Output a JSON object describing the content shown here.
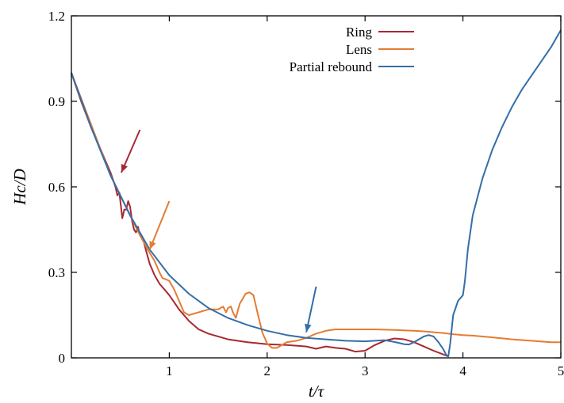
{
  "chart_data": {
    "type": "line",
    "xlabel": "t/τ",
    "ylabel": "Hc/D",
    "xlim": [
      0,
      5
    ],
    "ylim": [
      0,
      1.2
    ],
    "x_ticks": [
      1,
      2,
      3,
      4,
      5
    ],
    "x_tick_labels": [
      "1",
      "2",
      "3",
      "4",
      "5"
    ],
    "y_ticks": [
      0,
      0.3,
      0.6,
      0.9,
      1.2
    ],
    "y_tick_labels": [
      "0",
      "0.3",
      "0.6",
      "0.9",
      "1.2"
    ],
    "grid": false,
    "legend_position": "top-right",
    "series": [
      {
        "name": "Ring",
        "color": "#a82833",
        "points": [
          [
            0,
            1.0
          ],
          [
            0.1,
            0.9
          ],
          [
            0.2,
            0.81
          ],
          [
            0.3,
            0.73
          ],
          [
            0.4,
            0.65
          ],
          [
            0.45,
            0.6
          ],
          [
            0.47,
            0.57
          ],
          [
            0.49,
            0.58
          ],
          [
            0.5,
            0.55
          ],
          [
            0.52,
            0.49
          ],
          [
            0.54,
            0.52
          ],
          [
            0.56,
            0.52
          ],
          [
            0.58,
            0.55
          ],
          [
            0.6,
            0.53
          ],
          [
            0.62,
            0.48
          ],
          [
            0.64,
            0.45
          ],
          [
            0.66,
            0.44
          ],
          [
            0.68,
            0.46
          ],
          [
            0.7,
            0.43
          ],
          [
            0.73,
            0.42
          ],
          [
            0.76,
            0.38
          ],
          [
            0.8,
            0.33
          ],
          [
            0.85,
            0.29
          ],
          [
            0.9,
            0.26
          ],
          [
            1.0,
            0.22
          ],
          [
            1.1,
            0.17
          ],
          [
            1.2,
            0.13
          ],
          [
            1.3,
            0.1
          ],
          [
            1.4,
            0.085
          ],
          [
            1.6,
            0.065
          ],
          [
            1.8,
            0.055
          ],
          [
            2.0,
            0.048
          ],
          [
            2.2,
            0.045
          ],
          [
            2.4,
            0.04
          ],
          [
            2.5,
            0.032
          ],
          [
            2.6,
            0.04
          ],
          [
            2.7,
            0.035
          ],
          [
            2.8,
            0.032
          ],
          [
            2.9,
            0.022
          ],
          [
            3.0,
            0.025
          ],
          [
            3.1,
            0.045
          ],
          [
            3.2,
            0.06
          ],
          [
            3.3,
            0.068
          ],
          [
            3.4,
            0.065
          ],
          [
            3.5,
            0.055
          ],
          [
            3.6,
            0.04
          ],
          [
            3.7,
            0.025
          ],
          [
            3.8,
            0.012
          ],
          [
            3.85,
            0.005
          ]
        ]
      },
      {
        "name": "Lens",
        "color": "#e57b32",
        "points": [
          [
            0,
            1.0
          ],
          [
            0.2,
            0.82
          ],
          [
            0.4,
            0.64
          ],
          [
            0.6,
            0.5
          ],
          [
            0.7,
            0.43
          ],
          [
            0.78,
            0.38
          ],
          [
            0.85,
            0.34
          ],
          [
            0.9,
            0.3
          ],
          [
            0.93,
            0.28
          ],
          [
            0.97,
            0.275
          ],
          [
            1.0,
            0.27
          ],
          [
            1.05,
            0.24
          ],
          [
            1.1,
            0.2
          ],
          [
            1.15,
            0.16
          ],
          [
            1.2,
            0.15
          ],
          [
            1.3,
            0.16
          ],
          [
            1.4,
            0.17
          ],
          [
            1.5,
            0.17
          ],
          [
            1.55,
            0.18
          ],
          [
            1.58,
            0.16
          ],
          [
            1.6,
            0.175
          ],
          [
            1.63,
            0.18
          ],
          [
            1.65,
            0.16
          ],
          [
            1.68,
            0.14
          ],
          [
            1.72,
            0.19
          ],
          [
            1.78,
            0.225
          ],
          [
            1.82,
            0.23
          ],
          [
            1.86,
            0.22
          ],
          [
            1.9,
            0.16
          ],
          [
            1.95,
            0.09
          ],
          [
            2.0,
            0.05
          ],
          [
            2.05,
            0.035
          ],
          [
            2.1,
            0.035
          ],
          [
            2.15,
            0.045
          ],
          [
            2.2,
            0.055
          ],
          [
            2.3,
            0.06
          ],
          [
            2.4,
            0.07
          ],
          [
            2.5,
            0.085
          ],
          [
            2.6,
            0.095
          ],
          [
            2.7,
            0.1
          ],
          [
            2.9,
            0.1
          ],
          [
            3.1,
            0.1
          ],
          [
            3.3,
            0.098
          ],
          [
            3.5,
            0.095
          ],
          [
            3.6,
            0.093
          ],
          [
            3.7,
            0.09
          ],
          [
            3.8,
            0.087
          ],
          [
            3.9,
            0.083
          ],
          [
            4.0,
            0.08
          ],
          [
            4.1,
            0.078
          ],
          [
            4.3,
            0.072
          ],
          [
            4.5,
            0.065
          ],
          [
            4.7,
            0.06
          ],
          [
            4.9,
            0.055
          ],
          [
            5.0,
            0.055
          ]
        ]
      },
      {
        "name": "Partial rebound",
        "color": "#346ea8",
        "points": [
          [
            0,
            1.0
          ],
          [
            0.2,
            0.81
          ],
          [
            0.4,
            0.64
          ],
          [
            0.6,
            0.5
          ],
          [
            0.8,
            0.38
          ],
          [
            1.0,
            0.29
          ],
          [
            1.2,
            0.225
          ],
          [
            1.4,
            0.175
          ],
          [
            1.6,
            0.14
          ],
          [
            1.8,
            0.115
          ],
          [
            2.0,
            0.095
          ],
          [
            2.2,
            0.08
          ],
          [
            2.4,
            0.07
          ],
          [
            2.6,
            0.065
          ],
          [
            2.8,
            0.06
          ],
          [
            3.0,
            0.058
          ],
          [
            3.1,
            0.06
          ],
          [
            3.2,
            0.062
          ],
          [
            3.3,
            0.056
          ],
          [
            3.4,
            0.048
          ],
          [
            3.45,
            0.047
          ],
          [
            3.5,
            0.055
          ],
          [
            3.6,
            0.075
          ],
          [
            3.65,
            0.08
          ],
          [
            3.7,
            0.075
          ],
          [
            3.75,
            0.055
          ],
          [
            3.8,
            0.03
          ],
          [
            3.83,
            0.01
          ],
          [
            3.85,
            0.005
          ],
          [
            3.87,
            0.05
          ],
          [
            3.9,
            0.15
          ],
          [
            3.95,
            0.2
          ],
          [
            4.0,
            0.22
          ],
          [
            4.02,
            0.27
          ],
          [
            4.05,
            0.38
          ],
          [
            4.1,
            0.5
          ],
          [
            4.2,
            0.63
          ],
          [
            4.3,
            0.73
          ],
          [
            4.4,
            0.81
          ],
          [
            4.5,
            0.88
          ],
          [
            4.6,
            0.94
          ],
          [
            4.7,
            0.99
          ],
          [
            4.8,
            1.04
          ],
          [
            4.9,
            1.09
          ],
          [
            5.0,
            1.15
          ]
        ]
      }
    ],
    "arrows": [
      {
        "color": "#a82833",
        "from": [
          0.7,
          0.8
        ],
        "to": [
          0.51,
          0.65
        ]
      },
      {
        "color": "#e57b32",
        "from": [
          1.0,
          0.55
        ],
        "to": [
          0.8,
          0.38
        ]
      },
      {
        "color": "#346ea8",
        "from": [
          2.5,
          0.25
        ],
        "to": [
          2.4,
          0.09
        ]
      }
    ]
  }
}
